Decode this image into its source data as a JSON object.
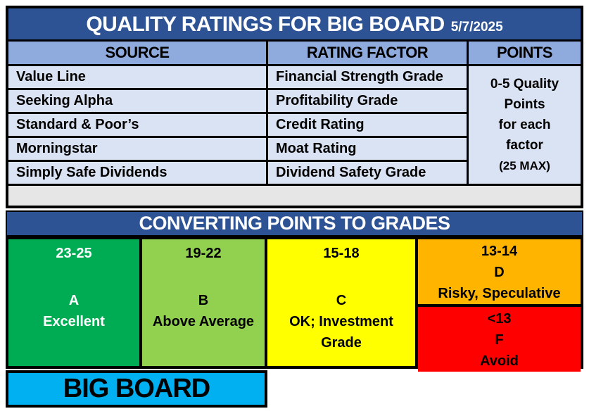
{
  "title": {
    "text": "QUALITY RATINGS FOR BIG BOARD",
    "date": "5/7/2025"
  },
  "ratings_table": {
    "headers": [
      "SOURCE",
      "RATING FACTOR",
      "POINTS"
    ],
    "rows": [
      {
        "source": "Value Line",
        "factor": "Financial Strength Grade"
      },
      {
        "source": "Seeking Alpha",
        "factor": "Profitability Grade"
      },
      {
        "source": "Standard & Poor’s",
        "factor": "Credit Rating"
      },
      {
        "source": "Morningstar",
        "factor": "Moat Rating"
      },
      {
        "source": "Simply Safe Dividends",
        "factor": "Dividend Safety Grade"
      }
    ],
    "points_note": [
      "0-5 Quality",
      "Points",
      "for each",
      "factor",
      "(25 MAX)"
    ]
  },
  "grades_section": {
    "header": "CONVERTING POINTS TO GRADES",
    "grades": [
      {
        "range": "23-25",
        "letter": "A",
        "label": "Excellent",
        "bg": "#00AC53",
        "text": "#FFFFFF"
      },
      {
        "range": "19-22",
        "letter": "B",
        "label": "Above Average",
        "bg": "#92D050",
        "text": "#000000"
      },
      {
        "range": "15-18",
        "letter": "C",
        "label": "OK; Investment Grade",
        "bg": "#FFFF00",
        "text": "#000000"
      },
      {
        "range": "13-14",
        "letter": "D",
        "label": "Risky, Speculative",
        "bg": "#FFB400",
        "text": "#000000"
      },
      {
        "range": "<13",
        "letter": "F",
        "label": "Avoid",
        "bg": "#FF0000",
        "text": "#000000"
      }
    ]
  },
  "footer": {
    "label": "BIG BOARD"
  },
  "colors": {
    "title_bar": "#2E5395",
    "header_row": "#8FAADC",
    "data_row": "#DAE3F3",
    "spacer_row": "#E7E6E6",
    "footer_bg": "#00B0F0",
    "border": "#000000"
  }
}
